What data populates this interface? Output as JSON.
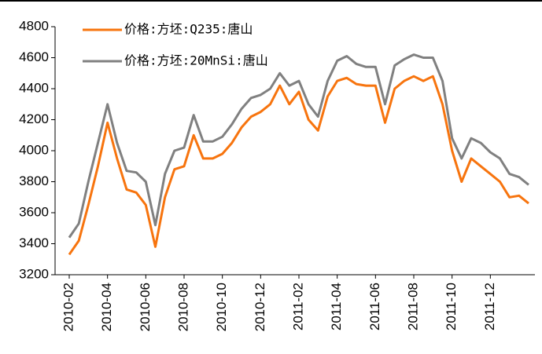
{
  "chart_data": {
    "type": "line",
    "categories": [
      "2010-02",
      null,
      null,
      null,
      "2010-04",
      null,
      null,
      null,
      "2010-06",
      null,
      null,
      null,
      "2010-08",
      null,
      null,
      null,
      "2010-10",
      null,
      null,
      null,
      "2010-12",
      null,
      null,
      null,
      "2011-02",
      null,
      null,
      null,
      "2011-04",
      null,
      null,
      null,
      "2011-06",
      null,
      null,
      null,
      "2011-08",
      null,
      null,
      null,
      "2011-10",
      null,
      null,
      null,
      "2011-12",
      null,
      null,
      null,
      null
    ],
    "series": [
      {
        "name": "价格:方坯:Q235:唐山",
        "color": "#f7740e",
        "values": [
          3330,
          3420,
          3650,
          3900,
          4180,
          3950,
          3750,
          3730,
          3650,
          3380,
          3700,
          3880,
          3900,
          4100,
          3950,
          3950,
          3980,
          4050,
          4150,
          4220,
          4250,
          4300,
          4420,
          4300,
          4380,
          4200,
          4130,
          4350,
          4450,
          4470,
          4430,
          4420,
          4420,
          4180,
          4400,
          4450,
          4480,
          4450,
          4480,
          4300,
          4000,
          3800,
          3950,
          3900,
          3850,
          3800,
          3700,
          3710,
          3660
        ]
      },
      {
        "name": "价格:方坯:20MnSi:唐山",
        "color": "#808080",
        "values": [
          3440,
          3530,
          3800,
          4050,
          4300,
          4050,
          3870,
          3860,
          3800,
          3520,
          3850,
          4000,
          4020,
          4230,
          4060,
          4060,
          4090,
          4170,
          4270,
          4340,
          4360,
          4400,
          4500,
          4420,
          4450,
          4300,
          4220,
          4450,
          4580,
          4610,
          4560,
          4540,
          4540,
          4300,
          4550,
          4590,
          4620,
          4600,
          4600,
          4450,
          4080,
          3950,
          4080,
          4050,
          3990,
          3950,
          3850,
          3830,
          3780
        ]
      }
    ],
    "ylim": [
      3200,
      4800
    ],
    "yticks": [
      3200,
      3400,
      3600,
      3800,
      4000,
      4200,
      4400,
      4600,
      4800
    ]
  }
}
